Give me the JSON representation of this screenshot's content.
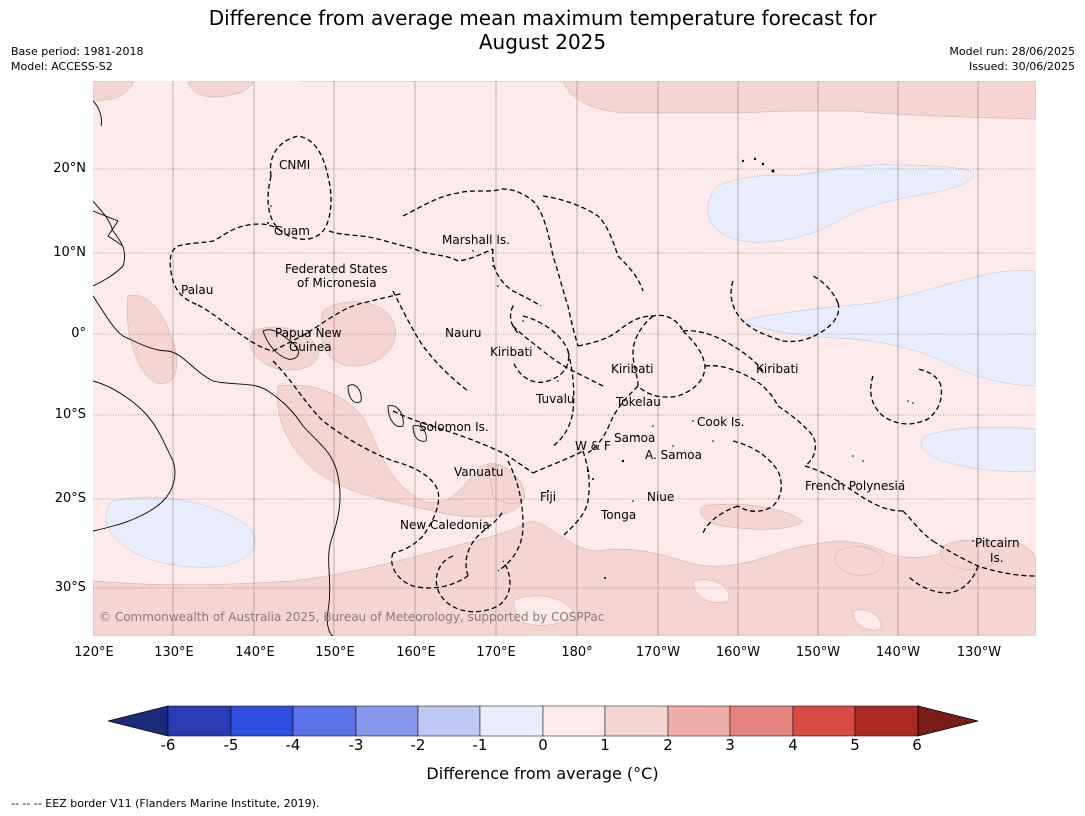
{
  "title_line1": "Difference from average mean maximum temperature forecast for",
  "title_line2": "August 2025",
  "meta_left": {
    "base_period": "Base period: 1981-2018",
    "model": "Model: ACCESS-S2"
  },
  "meta_right": {
    "model_run": "Model run: 28/06/2025",
    "issued": "Issued: 30/06/2025"
  },
  "map": {
    "lat_labels": [
      "20°N",
      "10°N",
      "0°",
      "10°S",
      "20°S",
      "30°S"
    ],
    "lon_labels": [
      "120°E",
      "130°E",
      "140°E",
      "150°E",
      "160°E",
      "170°E",
      "180°",
      "170°W",
      "160°W",
      "150°W",
      "140°W",
      "130°W"
    ],
    "place_labels": {
      "cnmi": "CNMI",
      "guam": "Guam",
      "marshall": "Marshall Is.",
      "fsm_1": "Federated States",
      "fsm_2": "of Micronesia",
      "palau": "Palau",
      "png_1": "Papua New",
      "png_2": "Guinea",
      "nauru": "Nauru",
      "kiribati_w": "Kiribati",
      "kiribati_c": "Kiribati",
      "kiribati_e": "Kiribati",
      "tuvalu": "Tuvalu",
      "tokelau": "Tokelau",
      "cook": "Cook Is.",
      "solomon": "Solomon Is.",
      "samoa": "Samoa",
      "wf": "W & F",
      "asamoa": "A. Samoa",
      "vanuatu": "Vanuatu",
      "fiji": "Fiji",
      "niue": "Niue",
      "tonga": "Tonga",
      "new_caledonia": "New Caledonia",
      "french_polynesia": "French Polynesia",
      "pitcairn_1": "Pitcairn",
      "pitcairn_2": "Is."
    },
    "copyright": "© Commonwealth of Australia 2025, Bureau of Meteorology, supported by COSPPac",
    "colors": {
      "near_zero_warm": "#fcebea",
      "warm_1_2": "#f5d5d2",
      "cool_0_1": "#e9ecfa"
    }
  },
  "colorbar": {
    "ticks": [
      "-6",
      "-5",
      "-4",
      "-3",
      "-2",
      "-1",
      "0",
      "1",
      "2",
      "3",
      "4",
      "5",
      "6"
    ],
    "colors": [
      "#1b2a7a",
      "#2a3cb5",
      "#2f4fe0",
      "#5a72e5",
      "#8698ec",
      "#bec8f3",
      "#e9ecfa",
      "#fcebea",
      "#f5d5d2",
      "#eeaca8",
      "#e6837f",
      "#d94a42",
      "#ab2a23",
      "#7a1b16"
    ],
    "label": "Difference from average (°C)"
  },
  "footnote": "--  --  -- EEZ border V11 (Flanders Marine Institute, 2019)."
}
